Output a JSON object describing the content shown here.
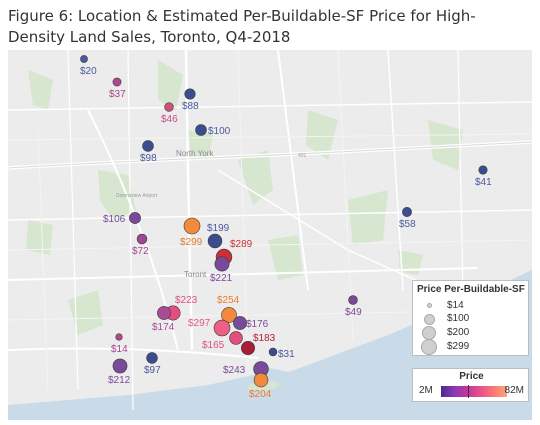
{
  "title": "Figure 6: Location & Estimated Per-Buildable-SF Price for High-Density Land Sales, Toronto, Q4-2018",
  "map_labels": {
    "north_york": "North York",
    "toronto": "Toront",
    "downsview": "Downsview Airport",
    "highway": "401"
  },
  "points": [
    {
      "label": "$20",
      "price": 20,
      "color": "#4a5a9c",
      "label_color": "#4a5a9c"
    },
    {
      "label": "$37",
      "price": 37,
      "color": "#b1478f",
      "label_color": "#a8448c"
    },
    {
      "label": "$88",
      "price": 88,
      "color": "#3c4d8f",
      "label_color": "#4a5a9c"
    },
    {
      "label": "$46",
      "price": 46,
      "color": "#d34f7c",
      "label_color": "#c94c80"
    },
    {
      "label": "$100",
      "price": 100,
      "color": "#3c4d8f",
      "label_color": "#4a5a9c"
    },
    {
      "label": "$98",
      "price": 98,
      "color": "#3c4d8f",
      "label_color": "#4a5a9c"
    },
    {
      "label": "$41",
      "price": 41,
      "color": "#3c4d8f",
      "label_color": "#4a5a9c"
    },
    {
      "label": "$58",
      "price": 58,
      "color": "#3c4d8f",
      "label_color": "#4a5a9c"
    },
    {
      "label": "$106",
      "price": 106,
      "color": "#7a4a9a",
      "label_color": "#7a4a9a"
    },
    {
      "label": "$72",
      "price": 72,
      "color": "#a0468f",
      "label_color": "#a0468f"
    },
    {
      "label": "$299",
      "price": 299,
      "color": "#f3893c",
      "label_color": "#ea7d2c"
    },
    {
      "label": "$199",
      "price": 199,
      "color": "#3c4d8f",
      "label_color": "#4a5a9c"
    },
    {
      "label": "$289",
      "price": 289,
      "color": "#c9303a",
      "label_color": "#c9303a"
    },
    {
      "label": "$221",
      "price": 221,
      "color": "#7a4a9a",
      "label_color": "#7a4a9a"
    },
    {
      "label": "$223",
      "price": 223,
      "color": "#e04f7d",
      "label_color": "#e04f7d"
    },
    {
      "label": "$174",
      "price": 174,
      "color": "#a84a94",
      "label_color": "#a84a94"
    },
    {
      "label": "$254",
      "price": 254,
      "color": "#f3893c",
      "label_color": "#ea7d2c"
    },
    {
      "label": "$297",
      "price": 297,
      "color": "#ee5f86",
      "label_color": "#e8577e"
    },
    {
      "label": "$176",
      "price": 176,
      "color": "#7a4a9a",
      "label_color": "#7a4a9a"
    },
    {
      "label": "$165",
      "price": 165,
      "color": "#e04f7d",
      "label_color": "#e04f7d"
    },
    {
      "label": "$183",
      "price": 183,
      "color": "#a71d3a",
      "label_color": "#b3203d"
    },
    {
      "label": "$49",
      "price": 49,
      "color": "#7a4a9a",
      "label_color": "#7a4a9a"
    },
    {
      "label": "$14",
      "price": 14,
      "color": "#b4478f",
      "label_color": "#a8448c"
    },
    {
      "label": "$31",
      "price": 31,
      "color": "#3c4d8f",
      "label_color": "#4a5a9c"
    },
    {
      "label": "$97",
      "price": 97,
      "color": "#3c4d8f",
      "label_color": "#4a5a9c"
    },
    {
      "label": "$212",
      "price": 212,
      "color": "#7a4a9a",
      "label_color": "#7a4a9a"
    },
    {
      "label": "$243",
      "price": 243,
      "color": "#7a4a9a",
      "label_color": "#7a4a9a"
    },
    {
      "label": "$204",
      "price": 204,
      "color": "#f3893c",
      "label_color": "#ea7d2c"
    }
  ],
  "size_legend": {
    "title": "Price Per-Buildable-SF",
    "items": [
      "$14",
      "$100",
      "$200",
      "$299"
    ]
  },
  "color_legend": {
    "title": "Price",
    "min": "2M",
    "max": "82M"
  }
}
